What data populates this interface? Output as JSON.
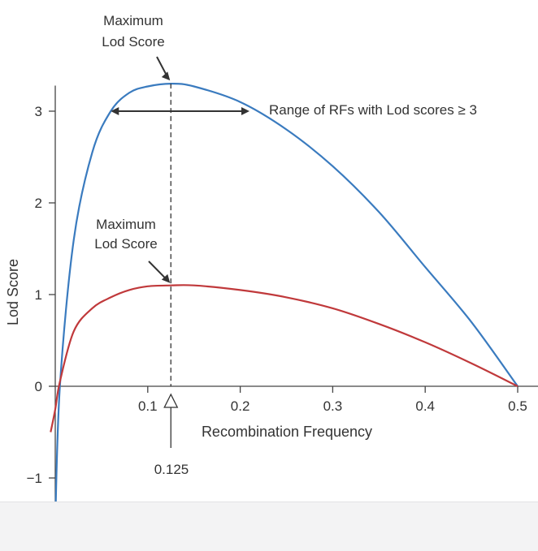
{
  "chart_data": {
    "type": "line",
    "title": "",
    "xlabel": "Recombination Frequency",
    "ylabel": "Lod Score",
    "xlim": [
      0,
      0.5
    ],
    "ylim": [
      -1.5,
      3.5
    ],
    "x_ticks": [
      0.1,
      0.2,
      0.3,
      0.4,
      0.5
    ],
    "x_tick_labels": [
      "0.1",
      "0.2",
      "0.3",
      "0.4",
      "0.5"
    ],
    "y_ticks": [
      -1,
      0,
      1,
      2,
      3
    ],
    "y_tick_labels": [
      "−1",
      "0",
      "1",
      "2",
      "3"
    ],
    "grid": false,
    "series": [
      {
        "color": "#3a7bbf",
        "points": [
          [
            0.0,
            -1.5
          ],
          [
            0.005,
            0.0
          ],
          [
            0.02,
            1.6
          ],
          [
            0.04,
            2.55
          ],
          [
            0.06,
            3.0
          ],
          [
            0.08,
            3.2
          ],
          [
            0.1,
            3.27
          ],
          [
            0.125,
            3.3
          ],
          [
            0.15,
            3.27
          ],
          [
            0.2,
            3.1
          ],
          [
            0.25,
            2.8
          ],
          [
            0.3,
            2.4
          ],
          [
            0.35,
            1.9
          ],
          [
            0.4,
            1.3
          ],
          [
            0.45,
            0.7
          ],
          [
            0.5,
            0.0
          ]
        ]
      },
      {
        "color": "#c0393b",
        "points": [
          [
            -0.005,
            -0.5
          ],
          [
            0.0,
            -0.25
          ],
          [
            0.005,
            0.05
          ],
          [
            0.02,
            0.6
          ],
          [
            0.04,
            0.85
          ],
          [
            0.06,
            0.97
          ],
          [
            0.08,
            1.05
          ],
          [
            0.1,
            1.09
          ],
          [
            0.125,
            1.1
          ],
          [
            0.15,
            1.1
          ],
          [
            0.2,
            1.05
          ],
          [
            0.25,
            0.97
          ],
          [
            0.3,
            0.85
          ],
          [
            0.35,
            0.68
          ],
          [
            0.4,
            0.48
          ],
          [
            0.45,
            0.25
          ],
          [
            0.5,
            0.0
          ]
        ]
      }
    ],
    "annotations": {
      "max_top_line1": "Maximum",
      "max_top_line2": "Lod Score",
      "max_mid_line1": "Maximum",
      "max_mid_line2": "Lod Score",
      "range_label": "Range of RFs with Lod scores ≥ 3",
      "max_x_label": "0.125",
      "max_x": 0.125,
      "range_x": [
        0.06,
        0.21
      ],
      "range_y": 3,
      "blue_max_y": 3.3,
      "red_max_y": 1.1
    }
  }
}
